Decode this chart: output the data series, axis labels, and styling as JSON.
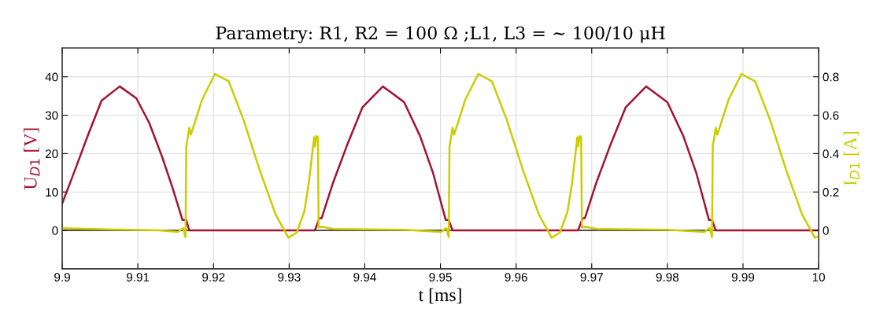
{
  "chart_data": {
    "type": "line",
    "title": "Parametry: R1, R2 = 100 Ω ;L1, L3 = ∼ 100/10 μH",
    "xlabel": "t [ms]",
    "ylabel": "U$_{D1}$ [V]",
    "y2label": "I$_{D1}$ [A]",
    "xlim": [
      9.9,
      10
    ],
    "xticks": [
      9.9,
      9.91,
      9.92,
      9.93,
      9.94,
      9.95,
      9.96,
      9.97,
      9.98,
      9.99,
      10
    ],
    "ylim": [
      -10,
      47.5
    ],
    "yticks": [
      0,
      10,
      20,
      30,
      40
    ],
    "y2lim": [
      -0.2,
      0.95
    ],
    "y2ticks": [
      0,
      0.2,
      0.4,
      0.6,
      0.8
    ],
    "grid": true,
    "line_style": "solid",
    "marker": "none",
    "ref_lines": [
      {
        "axis": "y",
        "value": 0,
        "color": "#1a1a1a"
      }
    ],
    "series": [
      {
        "color": "#a2142f",
        "x": [
          9.9,
          9.9017,
          9.9035,
          9.9052,
          9.9076,
          9.9098,
          9.9115,
          9.9132,
          9.9146,
          9.9159,
          9.9164,
          9.9168,
          9.9334,
          9.934,
          9.9343,
          9.9358,
          9.9376,
          9.9397,
          9.9424,
          9.9452,
          9.9473,
          9.949,
          9.9507,
          9.9511,
          9.9516,
          9.9682,
          9.9688,
          9.9691,
          9.9706,
          9.9724,
          9.9745,
          9.9772,
          9.98,
          9.9821,
          9.9838,
          9.9855,
          9.9859,
          9.9864,
          10.0
        ],
        "values": [
          7,
          15.8,
          25.3,
          33.8,
          37.5,
          34.4,
          28.0,
          19.2,
          11.0,
          2.7,
          2.7,
          0,
          0,
          3.2,
          3.2,
          12.4,
          21.9,
          32.1,
          37.5,
          33.4,
          24.6,
          15.1,
          2.7,
          2.7,
          0,
          0,
          3.2,
          3.2,
          12.4,
          21.9,
          32.1,
          37.5,
          33.4,
          24.6,
          15.1,
          2.7,
          2.7,
          0,
          0
        ]
      },
      {
        "color": "#cccc00",
        "axis": "y2",
        "x": [
          9.9,
          9.9059,
          9.9129,
          9.9153,
          9.916,
          9.9163,
          9.9164,
          9.9166,
          9.9168,
          9.917,
          9.9174,
          9.9185,
          9.9202,
          9.922,
          9.924,
          9.9261,
          9.9282,
          9.9299,
          9.931,
          9.932,
          9.9326,
          9.9333,
          9.9334,
          9.9336,
          9.9338,
          9.9339,
          9.9343,
          9.9359,
          9.9452,
          9.9501,
          9.9508,
          9.9511,
          9.9512,
          9.9514,
          9.9516,
          9.9518,
          9.9522,
          9.9533,
          9.955,
          9.9568,
          9.9588,
          9.9609,
          9.963,
          9.9647,
          9.9658,
          9.9668,
          9.9674,
          9.9681,
          9.9682,
          9.9684,
          9.9686,
          9.9687,
          9.9691,
          9.9707,
          9.98,
          9.9849,
          9.9856,
          9.9859,
          9.986,
          9.9862,
          9.9864,
          9.9866,
          9.987,
          9.9881,
          9.9898,
          9.9916,
          9.9936,
          9.9957,
          9.9978,
          9.9995,
          10.0
        ],
        "values": [
          0.011,
          0.005,
          0,
          -0.008,
          0.012,
          -0.035,
          0.437,
          0.485,
          0.535,
          0.499,
          0.546,
          0.682,
          0.815,
          0.777,
          0.573,
          0.315,
          0.084,
          -0.038,
          -0.011,
          0.098,
          0.247,
          0.485,
          0.437,
          0.492,
          0.485,
          0.016,
          0.019,
          0.007,
          0.003,
          -0.008,
          0.012,
          -0.035,
          0.437,
          0.485,
          0.535,
          0.499,
          0.546,
          0.682,
          0.815,
          0.777,
          0.573,
          0.315,
          0.084,
          -0.038,
          -0.011,
          0.098,
          0.247,
          0.485,
          0.437,
          0.492,
          0.485,
          0.016,
          0.019,
          0.007,
          0.003,
          -0.008,
          0.012,
          -0.035,
          0.437,
          0.485,
          0.535,
          0.499,
          0.546,
          0.682,
          0.815,
          0.777,
          0.573,
          0.315,
          0.084,
          -0.038,
          -0.03
        ]
      }
    ]
  }
}
